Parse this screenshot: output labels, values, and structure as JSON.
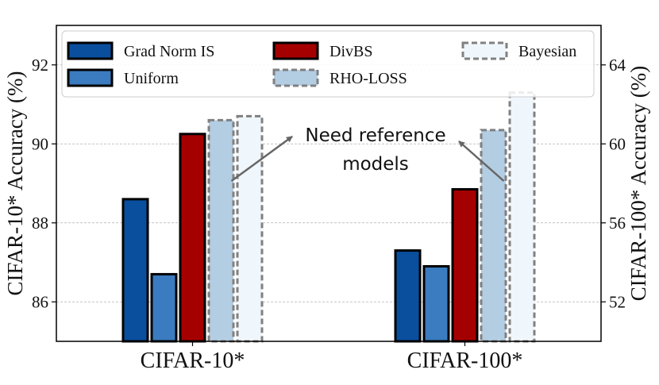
{
  "chart_data": {
    "type": "bar",
    "categories": [
      "CIFAR-10*",
      "CIFAR-100*"
    ],
    "series": [
      {
        "name": "Grad Norm IS",
        "values": [
          88.6,
          54.6
        ],
        "color": "#0a4f9e",
        "edge": "#000000",
        "dashed": false
      },
      {
        "name": "Uniform",
        "values": [
          86.7,
          53.8
        ],
        "color": "#3b7bbf",
        "edge": "#000000",
        "dashed": false
      },
      {
        "name": "DivBS",
        "values": [
          90.25,
          57.7
        ],
        "color": "#a50000",
        "edge": "#000000",
        "dashed": false
      },
      {
        "name": "RHO-LOSS",
        "values": [
          90.6,
          60.7
        ],
        "color": "#b3cde3",
        "edge": "#808080",
        "dashed": true
      },
      {
        "name": "Bayesian",
        "values": [
          90.7,
          62.6
        ],
        "color": "#eff6fc",
        "edge": "#808080",
        "dashed": true
      }
    ],
    "axis_series": [
      0,
      1
    ],
    "left_axis": {
      "label": "CIFAR-10* Accuracy (%)",
      "ylim": [
        85,
        93
      ],
      "ticks": [
        "86",
        "88",
        "90",
        "92"
      ]
    },
    "right_axis": {
      "label": "CIFAR-100* Accuracy (%)",
      "ylim": [
        50,
        66
      ],
      "ticks": [
        "52",
        "56",
        "60",
        "64"
      ]
    },
    "grid": true,
    "legend": {
      "placement": "top",
      "columns": 3,
      "order": [
        "Grad Norm IS",
        "Uniform",
        "DivBS",
        "RHO-LOSS",
        "Bayesian"
      ]
    },
    "annotation": {
      "text_line1": "Need reference",
      "text_line2": "models",
      "arrow_color": "#666666"
    }
  }
}
